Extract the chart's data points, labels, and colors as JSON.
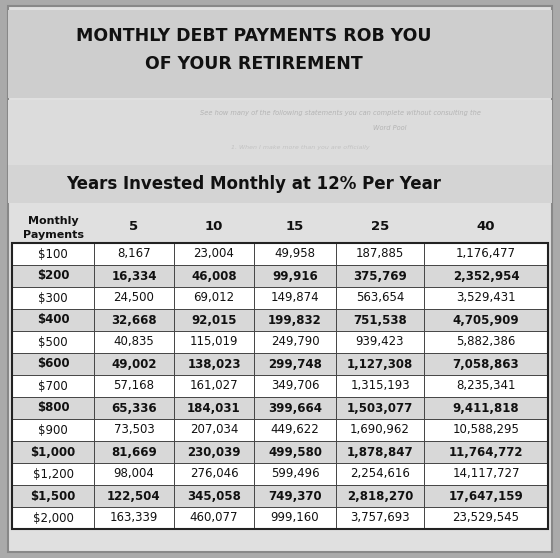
{
  "title_line1": "MONTHLY DEBT PAYMENTS ROB YOU",
  "title_line2": "OF YOUR RETIREMENT",
  "subtitle": "Years Invested Monthly at 12% Per Year",
  "col_header_label": "Monthly\nPayments",
  "col_headers": [
    "5",
    "10",
    "15",
    "25",
    "40"
  ],
  "rows": [
    {
      "payment": "$100",
      "bold": false,
      "values": [
        "8,167",
        "23,004",
        "49,958",
        "187,885",
        "1,176,477"
      ]
    },
    {
      "payment": "$200",
      "bold": true,
      "values": [
        "16,334",
        "46,008",
        "99,916",
        "375,769",
        "2,352,954"
      ]
    },
    {
      "payment": "$300",
      "bold": false,
      "values": [
        "24,500",
        "69,012",
        "149,874",
        "563,654",
        "3,529,431"
      ]
    },
    {
      "payment": "$400",
      "bold": true,
      "values": [
        "32,668",
        "92,015",
        "199,832",
        "751,538",
        "4,705,909"
      ]
    },
    {
      "payment": "$500",
      "bold": false,
      "values": [
        "40,835",
        "115,019",
        "249,790",
        "939,423",
        "5,882,386"
      ]
    },
    {
      "payment": "$600",
      "bold": true,
      "values": [
        "49,002",
        "138,023",
        "299,748",
        "1,127,308",
        "7,058,863"
      ]
    },
    {
      "payment": "$700",
      "bold": false,
      "values": [
        "57,168",
        "161,027",
        "349,706",
        "1,315,193",
        "8,235,341"
      ]
    },
    {
      "payment": "$800",
      "bold": true,
      "values": [
        "65,336",
        "184,031",
        "399,664",
        "1,503,077",
        "9,411,818"
      ]
    },
    {
      "payment": "$900",
      "bold": false,
      "values": [
        "73,503",
        "207,034",
        "449,622",
        "1,690,962",
        "10,588,295"
      ]
    },
    {
      "payment": "$1,000",
      "bold": true,
      "values": [
        "81,669",
        "230,039",
        "499,580",
        "1,878,847",
        "11,764,772"
      ]
    },
    {
      "payment": "$1,200",
      "bold": false,
      "values": [
        "98,004",
        "276,046",
        "599,496",
        "2,254,616",
        "14,117,727"
      ]
    },
    {
      "payment": "$1,500",
      "bold": true,
      "values": [
        "122,504",
        "345,058",
        "749,370",
        "2,818,270",
        "17,647,159"
      ]
    },
    {
      "payment": "$2,000",
      "bold": false,
      "values": [
        "163,339",
        "460,077",
        "999,160",
        "3,757,693",
        "23,529,545"
      ]
    }
  ],
  "bg_outer": "#b0b0b0",
  "bg_title_area": "#d2d2d2",
  "bg_white_area": "#e8e8e8",
  "bg_subtitle_area": "#d0d0d0",
  "table_white": "#ffffff",
  "table_bold_bg": "#d8d8d8",
  "border_color": "#222222",
  "title_color": "#111111",
  "text_color": "#111111",
  "fig_width": 5.6,
  "fig_height": 5.58
}
